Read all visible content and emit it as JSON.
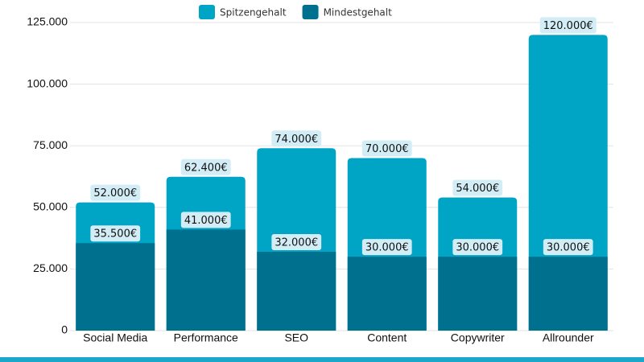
{
  "chart_data": {
    "type": "bar",
    "categories": [
      "Social Media",
      "Performance",
      "SEO",
      "Content",
      "Copywriter",
      "Allrounder"
    ],
    "series": [
      {
        "name": "Spitzengehalt",
        "color": "#00a5c6",
        "values": [
          52000,
          62400,
          74000,
          70000,
          54000,
          120000
        ],
        "value_labels": [
          "52.000€",
          "62.400€",
          "74.000€",
          "70.000€",
          "54.000€",
          "120.000€"
        ]
      },
      {
        "name": "Mindestgehalt",
        "color": "#00708f",
        "values": [
          35500,
          41000,
          32000,
          30000,
          30000,
          30000
        ],
        "value_labels": [
          "35.500€",
          "41.000€",
          "32.000€",
          "30.000€",
          "30.000€",
          "30.000€"
        ]
      }
    ],
    "ylim": [
      0,
      125000
    ],
    "yticks": [
      0,
      {
        "value": 25000,
        "label": "25.000"
      },
      {
        "value": 50000,
        "label": "50.000"
      },
      {
        "value": 75000,
        "label": "75.000"
      },
      {
        "value": 100000,
        "label": "100.000"
      },
      {
        "value": 125000,
        "label": "125.000"
      }
    ],
    "grid": true,
    "legend": "top"
  }
}
